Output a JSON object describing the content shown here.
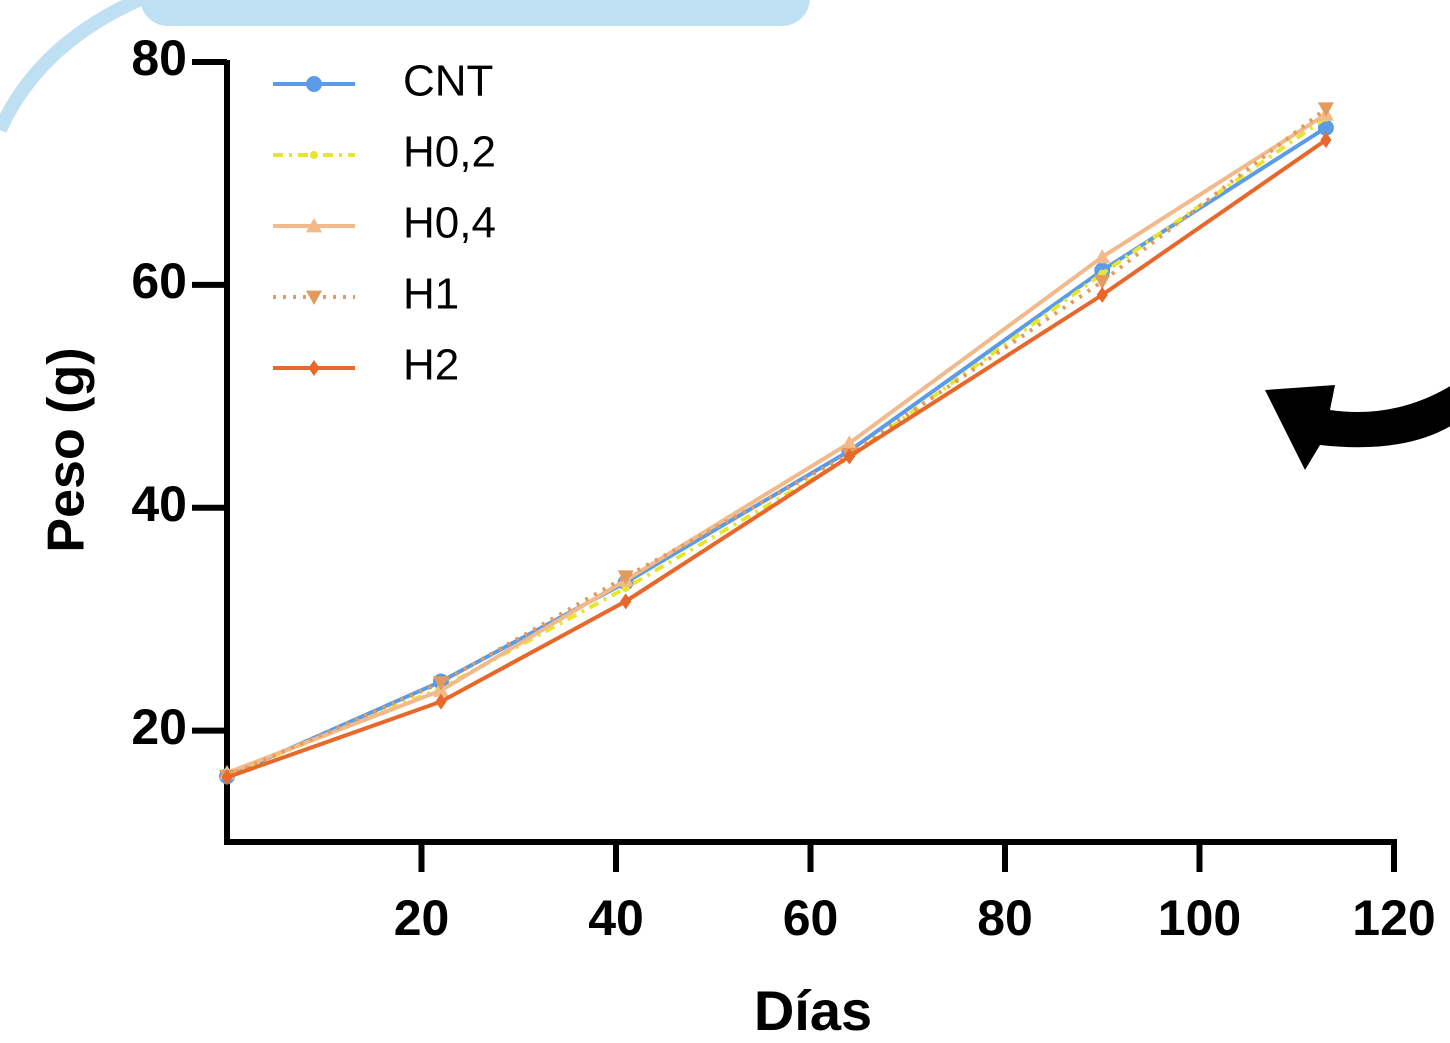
{
  "chart_data": {
    "type": "line",
    "xlabel": "Días",
    "ylabel": "Peso (g)",
    "x": [
      0,
      22,
      41,
      64,
      90,
      113
    ],
    "xlim": [
      0,
      120
    ],
    "xticks": [
      20,
      40,
      60,
      80,
      100,
      120
    ],
    "ylim": [
      10,
      80
    ],
    "yticks": [
      20,
      40,
      60,
      80
    ],
    "legend": "upper left",
    "series": [
      {
        "name": "CNT",
        "color": "#5b9be8",
        "dash": "solid",
        "marker": "circle",
        "values": [
          15.9,
          24.4,
          33.3,
          45.1,
          61.3,
          74.1
        ]
      },
      {
        "name": "H0,2",
        "color": "#e6e62e",
        "dash": "dashdot",
        "marker": "dot",
        "values": [
          16.0,
          23.8,
          32.8,
          44.5,
          61.0,
          75.0
        ]
      },
      {
        "name": "H0,4",
        "color": "#f2b98a",
        "dash": "solid",
        "marker": "triangle",
        "values": [
          16.2,
          23.6,
          33.5,
          45.8,
          62.5,
          75.3
        ]
      },
      {
        "name": "H1",
        "color": "#e49a5c",
        "dash": "dotted",
        "marker": "triangle-down",
        "values": [
          15.9,
          24.3,
          33.8,
          44.8,
          60.3,
          75.8
        ]
      },
      {
        "name": "H2",
        "color": "#e8672a",
        "dash": "solid",
        "marker": "diamond",
        "values": [
          15.8,
          22.6,
          31.6,
          44.6,
          59.1,
          73.0
        ]
      }
    ]
  }
}
